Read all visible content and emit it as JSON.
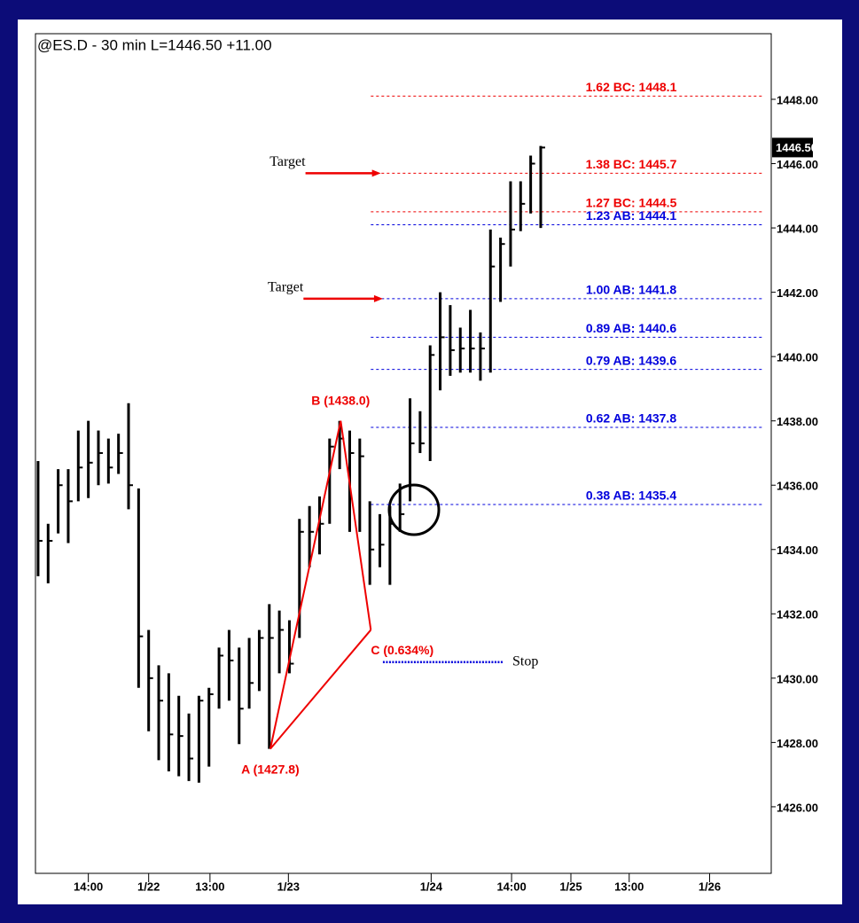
{
  "chart_data": {
    "type": "ohlc",
    "title": "@ES.D - 30 min   L=1446.50  +11.00",
    "x": [
      0,
      1,
      2,
      3,
      4,
      5,
      6,
      7,
      8,
      9,
      10,
      11,
      12,
      13,
      14,
      15,
      16,
      17,
      18,
      19,
      20,
      21,
      22,
      23,
      24,
      25,
      26,
      27,
      28,
      29,
      30,
      31,
      32,
      33,
      34,
      35,
      36,
      37,
      38,
      39,
      40,
      41,
      42,
      43,
      44,
      45,
      46,
      47,
      48,
      49,
      50
    ],
    "high": [
      1436.75,
      1434.8,
      1436.5,
      1436.5,
      1437.7,
      1438.0,
      1437.7,
      1437.45,
      1437.6,
      1438.55,
      1435.9,
      1431.5,
      1430.4,
      1430.15,
      1429.45,
      1428.9,
      1429.45,
      1429.7,
      1430.95,
      1431.5,
      1430.95,
      1431.25,
      1431.5,
      1432.3,
      1432.1,
      1431.8,
      1434.95,
      1435.35,
      1435.65,
      1437.45,
      1438.0,
      1437.7,
      1437.45,
      1435.5,
      1435.1,
      1435.35,
      1436.05,
      1438.7,
      1438.3,
      1440.35,
      1442.0,
      1441.6,
      1440.9,
      1441.45,
      1440.75,
      1443.95,
      1443.7,
      1445.45,
      1445.45,
      1446.25,
      1446.55
    ],
    "low": [
      1433.17,
      1432.95,
      1434.5,
      1434.2,
      1435.5,
      1435.6,
      1436.0,
      1436.05,
      1436.35,
      1435.25,
      1429.7,
      1428.35,
      1427.45,
      1427.1,
      1426.95,
      1426.8,
      1426.75,
      1427.25,
      1429.05,
      1429.3,
      1427.95,
      1429.05,
      1429.6,
      1427.8,
      1430.15,
      1430.15,
      1431.25,
      1433.45,
      1433.85,
      1434.8,
      1436.5,
      1434.55,
      1434.55,
      1432.9,
      1433.45,
      1432.9,
      1434.55,
      1435.5,
      1437.0,
      1436.75,
      1438.95,
      1439.4,
      1439.5,
      1439.5,
      1439.25,
      1439.5,
      1441.7,
      1442.8,
      1443.9,
      1444.45,
      1444.0
    ],
    "close": [
      1434.27,
      1434.27,
      1436.0,
      1435.5,
      1436.55,
      1436.7,
      1437.0,
      1436.55,
      1437.0,
      1436.0,
      1431.3,
      1430.0,
      1429.3,
      1428.25,
      1428.2,
      1427.5,
      1429.3,
      1429.5,
      1430.7,
      1430.55,
      1429.05,
      1429.85,
      1431.25,
      1431.25,
      1431.5,
      1430.45,
      1434.55,
      1434.55,
      1434.8,
      1437.2,
      1437.45,
      1437.0,
      1436.9,
      1434.0,
      1434.15,
      1434.8,
      1435.1,
      1437.3,
      1437.3,
      1440.05,
      1440.6,
      1440.2,
      1440.25,
      1440.25,
      1440.25,
      1442.8,
      1443.5,
      1443.95,
      1444.75,
      1446.0,
      1446.5
    ],
    "color": "#000000",
    "xlim": [
      -0.26,
      72.93
    ],
    "ylim": [
      1423.93,
      1450.04
    ],
    "xticks": [
      {
        "value": 5.0,
        "label": "14:00"
      },
      {
        "value": 11.0,
        "label": "1/22"
      },
      {
        "value": 17.1,
        "label": "13:00"
      },
      {
        "value": 24.9,
        "label": "1/23"
      },
      {
        "value": 39.1,
        "label": "1/24"
      },
      {
        "value": 47.1,
        "label": "14:00"
      },
      {
        "value": 53.0,
        "label": "1/25"
      },
      {
        "value": 58.8,
        "label": "13:00"
      },
      {
        "value": 66.8,
        "label": "1/26"
      }
    ],
    "yticks": [
      {
        "value": 1426,
        "label": "1426.00"
      },
      {
        "value": 1428,
        "label": "1428.00"
      },
      {
        "value": 1430,
        "label": "1430.00"
      },
      {
        "value": 1432,
        "label": "1432.00"
      },
      {
        "value": 1434,
        "label": "1434.00"
      },
      {
        "value": 1436,
        "label": "1436.00"
      },
      {
        "value": 1438,
        "label": "1438.00"
      },
      {
        "value": 1440,
        "label": "1440.00"
      },
      {
        "value": 1442,
        "label": "1442.00"
      },
      {
        "value": 1444,
        "label": "1444.00"
      },
      {
        "value": 1446,
        "label": "1446.00"
      },
      {
        "value": 1448,
        "label": "1448.00"
      }
    ],
    "last_price": {
      "value": 1446.5,
      "label": "1446.50"
    },
    "levels": [
      {
        "label": "1.62 BC: 1448.1",
        "value": 1448.1,
        "color": "#ee0000"
      },
      {
        "label": "1.38 BC: 1445.7",
        "value": 1445.7,
        "color": "#ee0000"
      },
      {
        "label": "1.27 BC: 1444.5",
        "value": 1444.5,
        "color": "#ee0000"
      },
      {
        "label": "1.23 AB: 1444.1",
        "value": 1444.1,
        "color": "#0000dd"
      },
      {
        "label": "1.00 AB: 1441.8",
        "value": 1441.8,
        "color": "#0000dd"
      },
      {
        "label": "0.89 AB: 1440.6",
        "value": 1440.6,
        "color": "#0000dd"
      },
      {
        "label": "0.79 AB: 1439.6",
        "value": 1439.6,
        "color": "#0000dd"
      },
      {
        "label": "0.62 AB: 1437.8",
        "value": 1437.8,
        "color": "#0000dd"
      },
      {
        "label": "0.38 AB: 1435.4",
        "value": 1435.4,
        "color": "#0000dd"
      }
    ],
    "pattern": {
      "color": "#ee0000",
      "points": [
        {
          "label": "A (1427.8)",
          "x": 23.1,
          "y": 1427.8
        },
        {
          "label": "B (1438.0)",
          "x": 30.1,
          "y": 1438.0
        },
        {
          "label": "C (0.634%)",
          "x": 33.1,
          "y": 1431.5
        }
      ]
    },
    "targets": [
      {
        "label": "Target",
        "value": 1445.7,
        "x": [
          26.6,
          34.1
        ]
      },
      {
        "label": "Target",
        "value": 1441.8,
        "x": [
          26.4,
          34.3
        ]
      }
    ],
    "stop": {
      "label": "Stop",
      "value": 1430.5,
      "x": [
        34.3,
        46.3
      ],
      "color": "#0000dd"
    }
  }
}
